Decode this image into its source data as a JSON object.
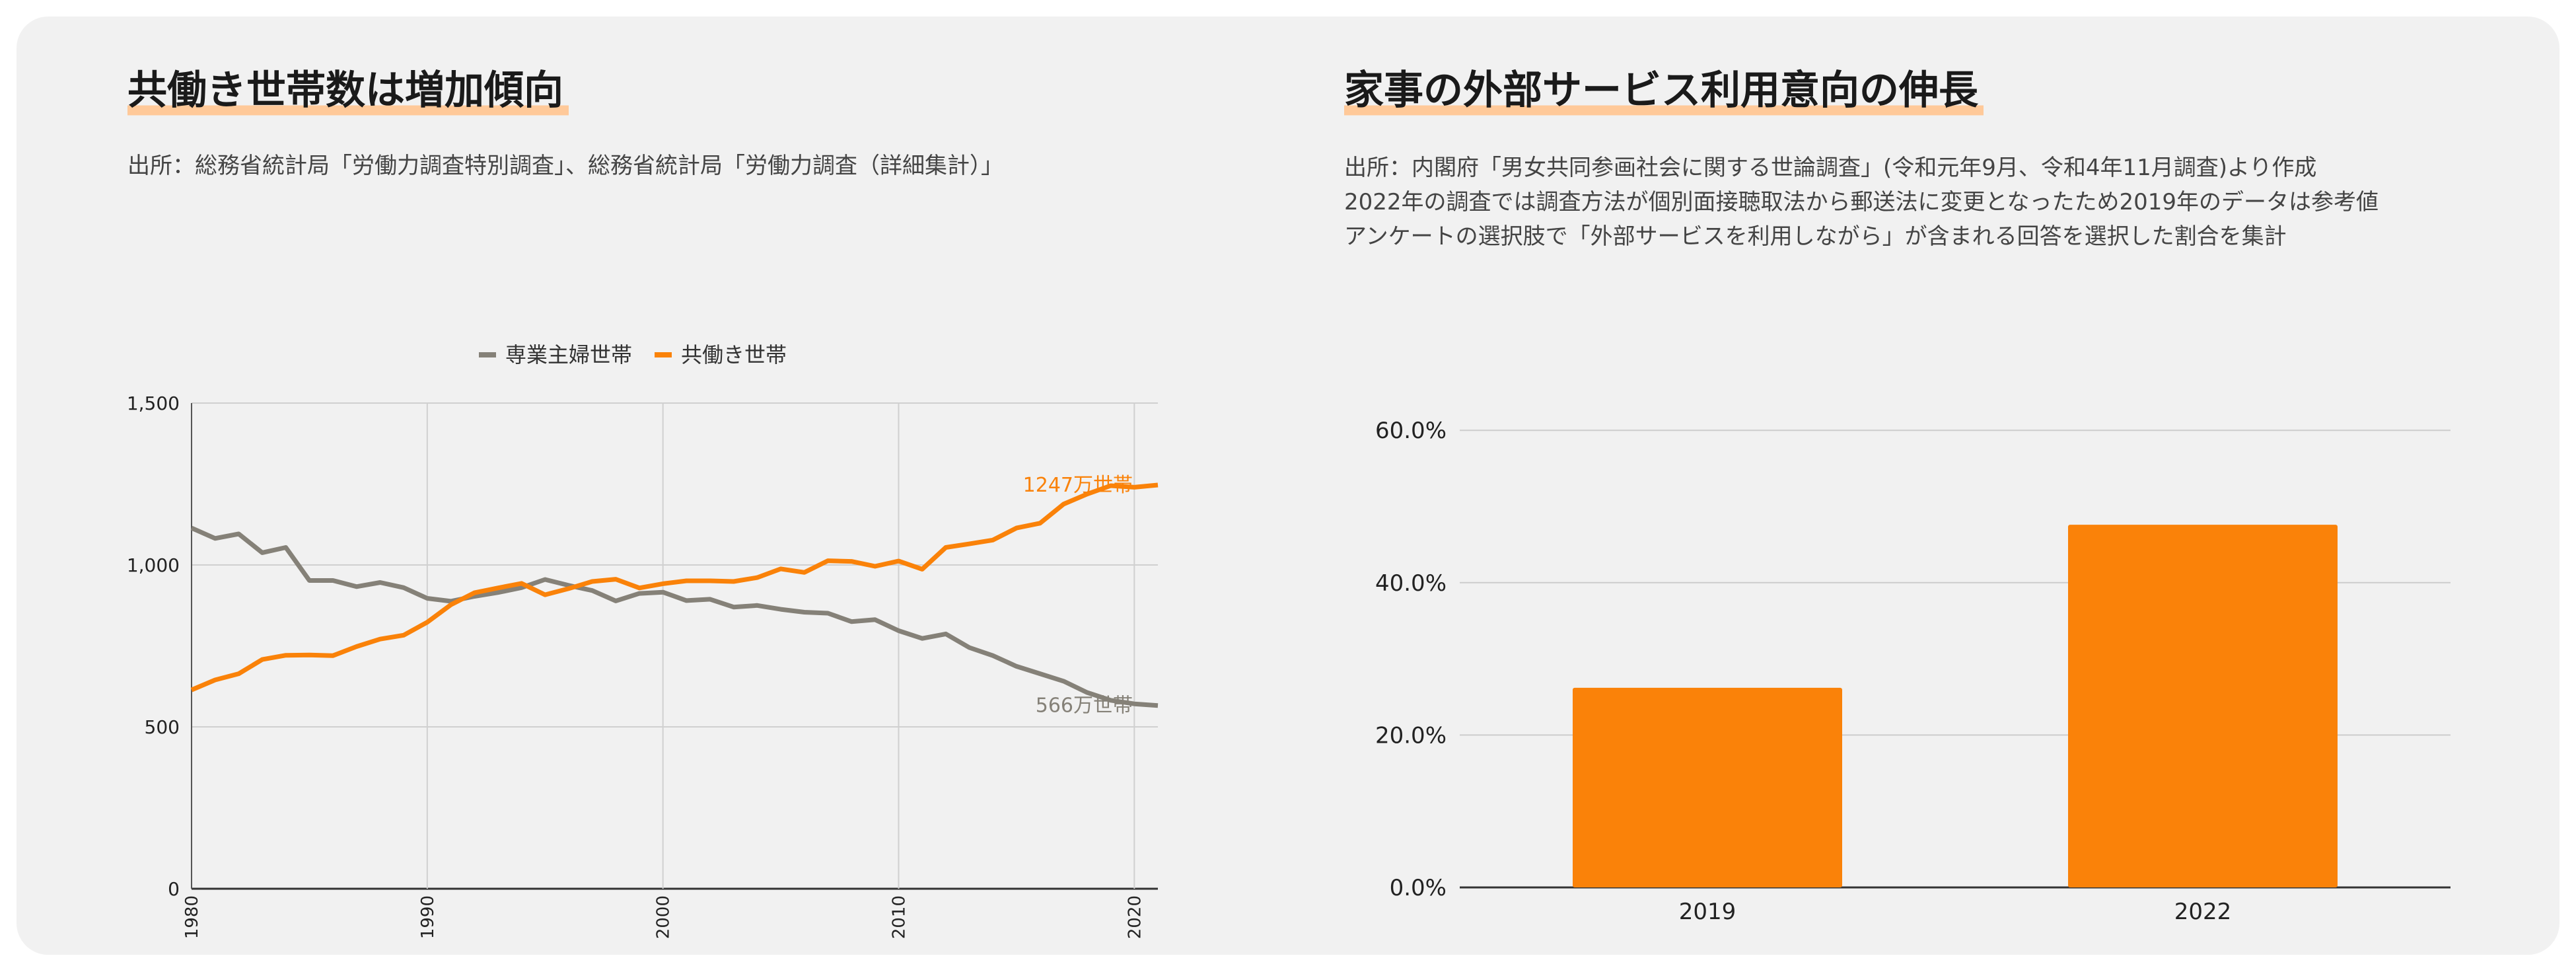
{
  "colors": {
    "orange": "#fa8209",
    "gray": "#858178",
    "highlight": "#ffc999",
    "card": "#f1f1f1"
  },
  "left": {
    "title": "共働き世帯数は増加傾向",
    "source": "出所：総務省統計局「労働力調査特別調査」、総務省統計局「労働力調査（詳細集計）」"
  },
  "right": {
    "title": "家事の外部サービス利用意向の伸長",
    "notes": [
      "出所：内閣府「男女共同参画社会に関する世論調査」(令和元年9月、令和4年11月調査)より作成",
      "2022年の調査では調査方法が個別面接聴取法から郵送法に変更となったため2019年のデータは参考値",
      "アンケートの選択肢で「外部サービスを利用しながら」が含まれる回答を選択した割合を集計"
    ]
  },
  "chart_data": [
    {
      "type": "line",
      "title": "共働き世帯数は増加傾向",
      "x": [
        1980,
        1981,
        1982,
        1983,
        1984,
        1985,
        1986,
        1987,
        1988,
        1989,
        1990,
        1991,
        1992,
        1993,
        1994,
        1995,
        1996,
        1997,
        1998,
        1999,
        2000,
        2001,
        2002,
        2003,
        2004,
        2005,
        2006,
        2007,
        2008,
        2009,
        2010,
        2011,
        2012,
        2013,
        2014,
        2015,
        2016,
        2017,
        2018,
        2019,
        2020,
        2021
      ],
      "series": [
        {
          "name": "専業主婦世帯",
          "color": "#858178",
          "values": [
            1114,
            1082,
            1096,
            1038,
            1054,
            952,
            952,
            933,
            946,
            930,
            897,
            888,
            903,
            915,
            930,
            955,
            937,
            921,
            889,
            912,
            916,
            890,
            894,
            870,
            875,
            863,
            854,
            851,
            825,
            831,
            797,
            773,
            787,
            745,
            720,
            687,
            664,
            641,
            606,
            582,
            571,
            566
          ],
          "end_label": "566万世帯"
        },
        {
          "name": "共働き世帯",
          "color": "#fa8209",
          "values": [
            614,
            645,
            664,
            708,
            721,
            722,
            720,
            748,
            771,
            783,
            823,
            877,
            914,
            929,
            943,
            908,
            927,
            949,
            956,
            929,
            942,
            951,
            951,
            949,
            961,
            988,
            977,
            1013,
            1011,
            996,
            1012,
            987,
            1054,
            1065,
            1077,
            1114,
            1129,
            1188,
            1219,
            1245,
            1240,
            1247
          ],
          "end_label": "1247万世帯"
        }
      ],
      "ylim": [
        0,
        1500
      ],
      "y_ticks": [
        0,
        500,
        1000,
        1500
      ],
      "y_tick_labels": [
        "0",
        "500",
        "1,000",
        "1,500"
      ],
      "x_ticks": [
        1980,
        1990,
        2000,
        2010,
        2020
      ],
      "x_tick_labels": [
        "1980",
        "1990",
        "2000",
        "2010",
        "2020"
      ],
      "legend_position": "top-center",
      "grid": true
    },
    {
      "type": "bar",
      "title": "家事の外部サービス利用意向の伸長",
      "categories": [
        "2019",
        "2022"
      ],
      "values": [
        26.2,
        47.6
      ],
      "ylim": [
        0,
        65
      ],
      "y_ticks": [
        0,
        20,
        40,
        60
      ],
      "y_tick_labels": [
        "0.0%",
        "20.0%",
        "40.0%",
        "60.0%"
      ],
      "color": "#fa8209",
      "grid": true
    }
  ]
}
